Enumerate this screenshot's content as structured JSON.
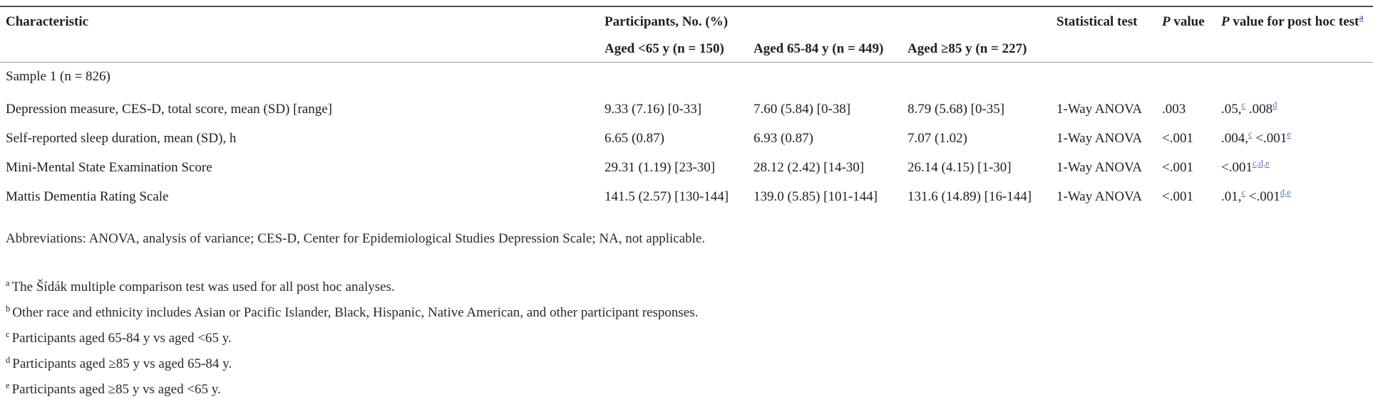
{
  "page": {
    "background": "#ffffff",
    "text_color": "#1f1f1f",
    "link_blue": "#4f6fc5",
    "link_purple": "#6f5fa8"
  },
  "table": {
    "header": {
      "characteristic": "Characteristic",
      "participants_group": "Participants, No. (%)",
      "age_columns": [
        "Aged <65 y (n = 150)",
        "Aged 65-84 y (n = 449)",
        "Aged ≥85 y (n = 227)"
      ],
      "statistical_test": "Statistical test",
      "p_value_italic": "P",
      "p_value_rest": " value",
      "post_hoc_italic": "P",
      "post_hoc_rest": " value for post hoc test",
      "post_hoc_sup": "a"
    },
    "section_row_label": "Sample 1 (n = 826)",
    "rows": [
      {
        "characteristic": "Depression measure, CES-D, total score, mean (SD) [range]",
        "age_lt65": "9.33 (7.16) [0-33]",
        "age_65_84": "7.60 (5.84) [0-38]",
        "age_ge85": "8.79 (5.68) [0-35]",
        "test": "1-Way ANOVA",
        "p_value": ".003",
        "post_hoc": {
          "t1": ".05,",
          "s1": "c",
          "t2": " .008",
          "s2": "d"
        }
      },
      {
        "characteristic": "Self-reported sleep duration, mean (SD), h",
        "age_lt65": "6.65 (0.87)",
        "age_65_84": "6.93 (0.87)",
        "age_ge85": "7.07 (1.02)",
        "test": "1-Way ANOVA",
        "p_value": "<.001",
        "post_hoc": {
          "t1": ".004,",
          "s1": "c",
          "t2": " <.001",
          "s2": "e"
        }
      },
      {
        "characteristic": "Mini-Mental State Examination Score",
        "age_lt65": "29.31 (1.19) [23-30]",
        "age_65_84": "28.12 (2.42) [14-30]",
        "age_ge85": "26.14 (4.15) [1-30]",
        "test": "1-Way ANOVA",
        "p_value": "<.001",
        "post_hoc": {
          "t1": "<.001",
          "s1": "c",
          "t2": "",
          "s2": ",d,e"
        }
      },
      {
        "characteristic": "Mattis Dementia Rating Scale",
        "age_lt65": "141.5 (2.57) [130-144]",
        "age_65_84": "139.0 (5.85) [101-144]",
        "age_ge85": "131.6 (14.89) [16-144]",
        "test": "1-Way ANOVA",
        "p_value": "<.001",
        "post_hoc": {
          "t1": ".01,",
          "s1": "c",
          "t2": " <.001",
          "s2": "d,e"
        }
      }
    ]
  },
  "notes": {
    "abbreviations": "Abbreviations: ANOVA, analysis of variance; CES-D, Center for Epidemiological Studies Depression Scale; NA, not applicable.",
    "footnotes": [
      {
        "marker": "a",
        "text": "The Šídák multiple comparison test was used for all post hoc analyses."
      },
      {
        "marker": "b",
        "text": "Other race and ethnicity includes Asian or Pacific Islander, Black, Hispanic, Native American, and other participant responses."
      },
      {
        "marker": "c",
        "text": "Participants aged 65-84 y vs aged <65 y."
      },
      {
        "marker": "d",
        "text": "Participants aged ≥85 y vs aged 65-84 y."
      },
      {
        "marker": "e",
        "text": "Participants aged ≥85 y vs aged <65 y."
      }
    ]
  }
}
